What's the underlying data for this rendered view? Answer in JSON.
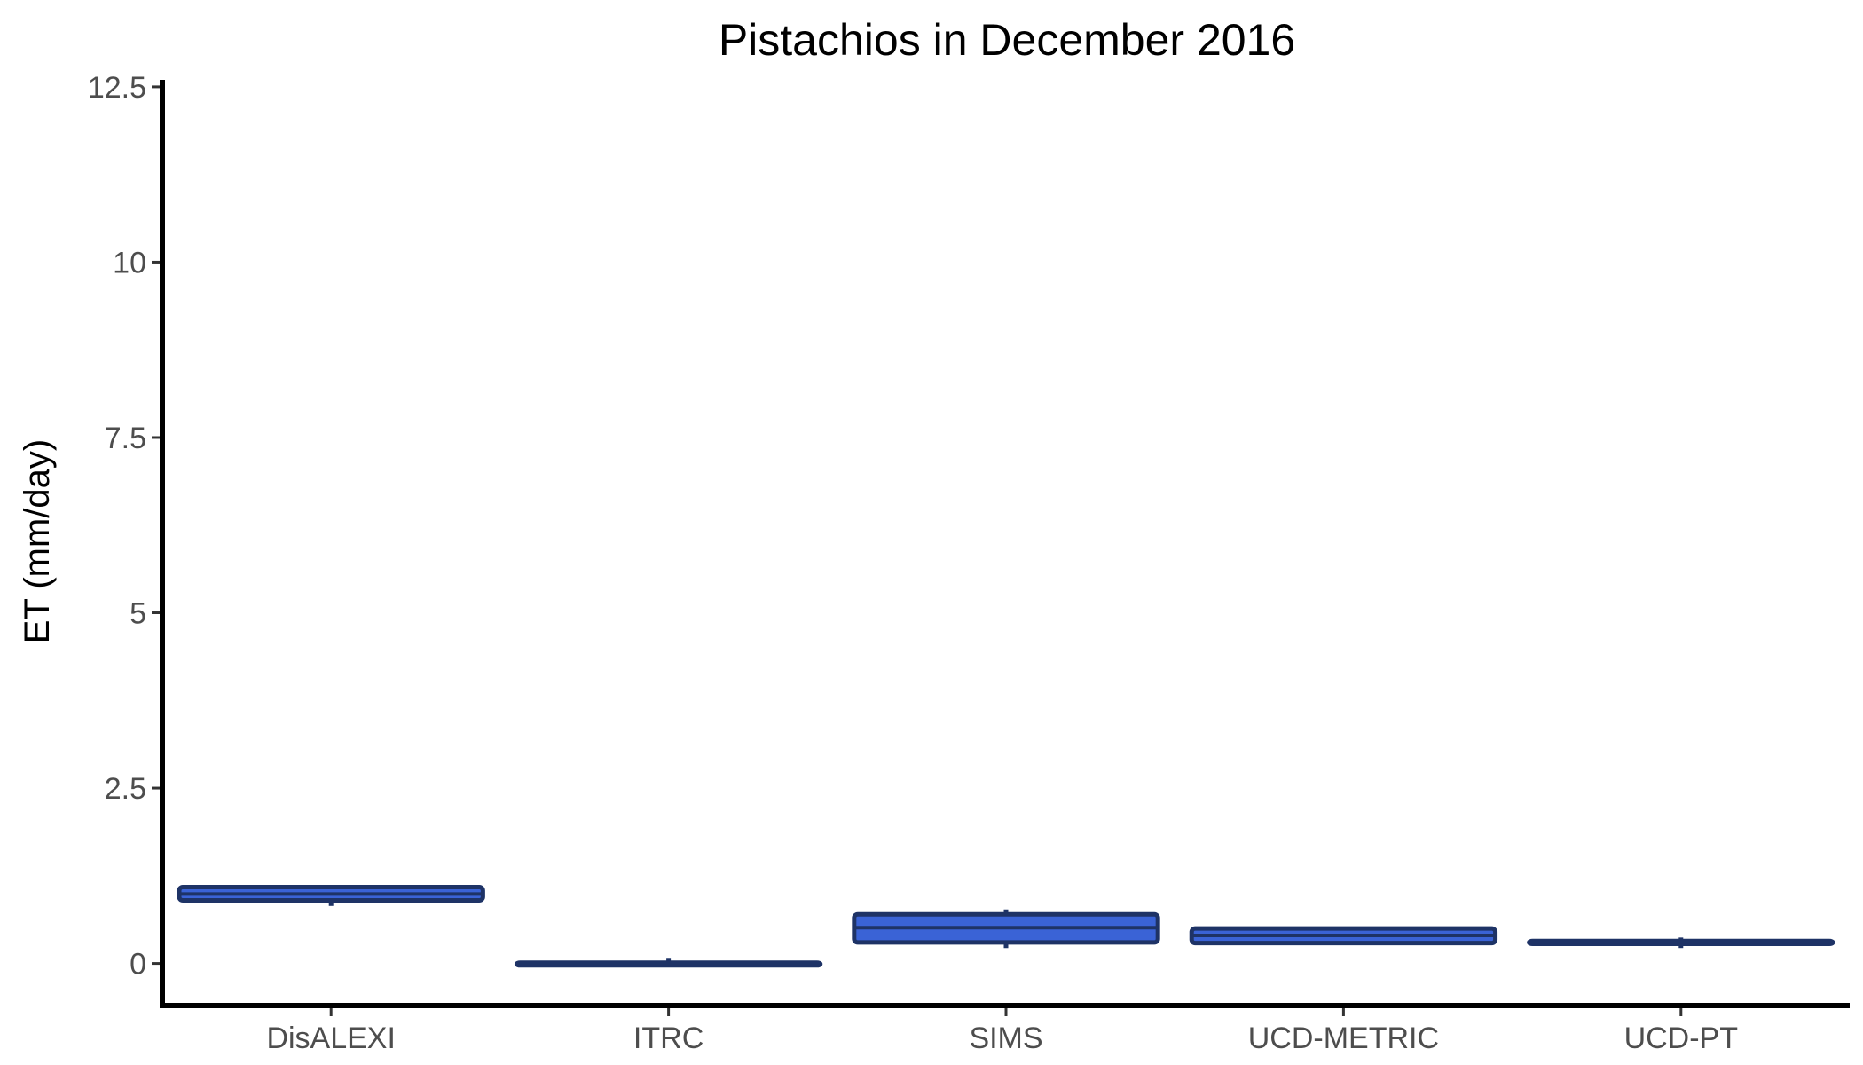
{
  "chart_data": {
    "type": "boxplot",
    "title": "Pistachios in December 2016",
    "xlabel": "",
    "ylabel": "ET (mm/day)",
    "ylim": [
      -0.6,
      12.6
    ],
    "yticks": [
      0,
      2.5,
      5,
      7.5,
      10,
      12.5
    ],
    "ytick_labels": [
      "0",
      "2.5",
      "5",
      "7.5",
      "10",
      "12.5"
    ],
    "categories": [
      "DisALEXI",
      "ITRC",
      "SIMS",
      "UCD-METRIC",
      "UCD-PT"
    ],
    "boxes": [
      {
        "category": "DisALEXI",
        "min": 0.82,
        "q1": 0.9,
        "median": 0.99,
        "q3": 1.09,
        "max": 1.12
      },
      {
        "category": "ITRC",
        "min": -0.01,
        "q1": -0.01,
        "median": 0.0,
        "q3": 0.01,
        "max": 0.08
      },
      {
        "category": "SIMS",
        "min": 0.22,
        "q1": 0.3,
        "median": 0.51,
        "q3": 0.7,
        "max": 0.77
      },
      {
        "category": "UCD-METRIC",
        "min": 0.28,
        "q1": 0.29,
        "median": 0.4,
        "q3": 0.5,
        "max": 0.52
      },
      {
        "category": "UCD-PT",
        "min": 0.22,
        "q1": 0.28,
        "median": 0.3,
        "q3": 0.32,
        "max": 0.37
      }
    ],
    "box_fill": "#3a63d6",
    "box_outline": "#1e3366",
    "grid": false,
    "legend": "none"
  }
}
